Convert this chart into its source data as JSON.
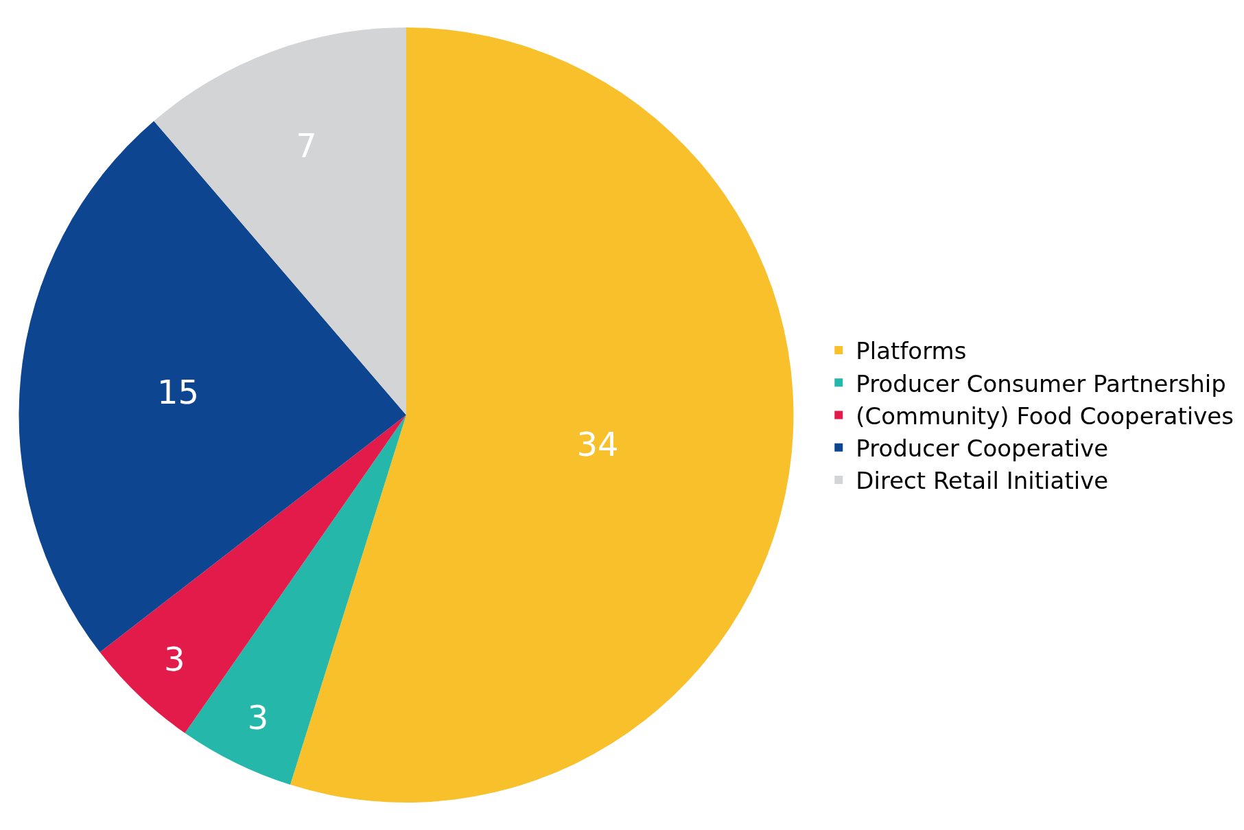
{
  "chart_data": {
    "type": "pie",
    "categories": [
      "Platforms",
      "Producer Consumer Partnership",
      "(Community) Food Cooperatives",
      "Producer Cooperative",
      "Direct Retail Initiative"
    ],
    "values": [
      34,
      3,
      3,
      15,
      7
    ],
    "colors": [
      "#f8c12c",
      "#25b7a9",
      "#e31b4a",
      "#0d4590",
      "#d3d4d6"
    ],
    "data_labels": true,
    "legend": "right"
  }
}
